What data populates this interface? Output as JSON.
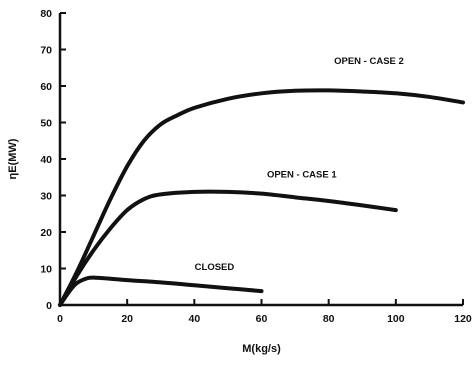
{
  "chart_data": {
    "type": "line",
    "xlabel": "M(kg/s)",
    "ylabel": "ηE(MW)",
    "xlim": [
      0,
      120
    ],
    "ylim": [
      0,
      80
    ],
    "xticks": [
      0,
      20,
      40,
      60,
      80,
      100,
      120
    ],
    "yticks": [
      0,
      10,
      20,
      30,
      40,
      50,
      60,
      70,
      80
    ],
    "grid": false,
    "series": [
      {
        "name": "OPEN - CASE 2",
        "x": [
          0,
          5,
          10,
          15,
          20,
          25,
          30,
          35,
          40,
          50,
          60,
          70,
          80,
          90,
          100,
          110,
          120
        ],
        "y": [
          0,
          9,
          19,
          29,
          38,
          45,
          49.5,
          52,
          54,
          56.5,
          58,
          58.7,
          58.8,
          58.5,
          58,
          57,
          55.5
        ]
      },
      {
        "name": "OPEN - CASE 1",
        "x": [
          0,
          5,
          10,
          15,
          20,
          25,
          30,
          40,
          50,
          60,
          70,
          80,
          90,
          100
        ],
        "y": [
          0,
          8,
          15,
          21,
          26,
          29,
          30.3,
          31,
          31,
          30.5,
          29.5,
          28.5,
          27.3,
          26
        ]
      },
      {
        "name": "CLOSED",
        "x": [
          0,
          3,
          5,
          8,
          10,
          15,
          20,
          30,
          40,
          50,
          60
        ],
        "y": [
          0,
          4,
          6,
          7.3,
          7.5,
          7.2,
          6.8,
          6.2,
          5.4,
          4.6,
          3.8
        ]
      }
    ],
    "annotations": [
      "OPEN - CASE 2",
      "OPEN - CASE 1",
      "CLOSED"
    ]
  }
}
